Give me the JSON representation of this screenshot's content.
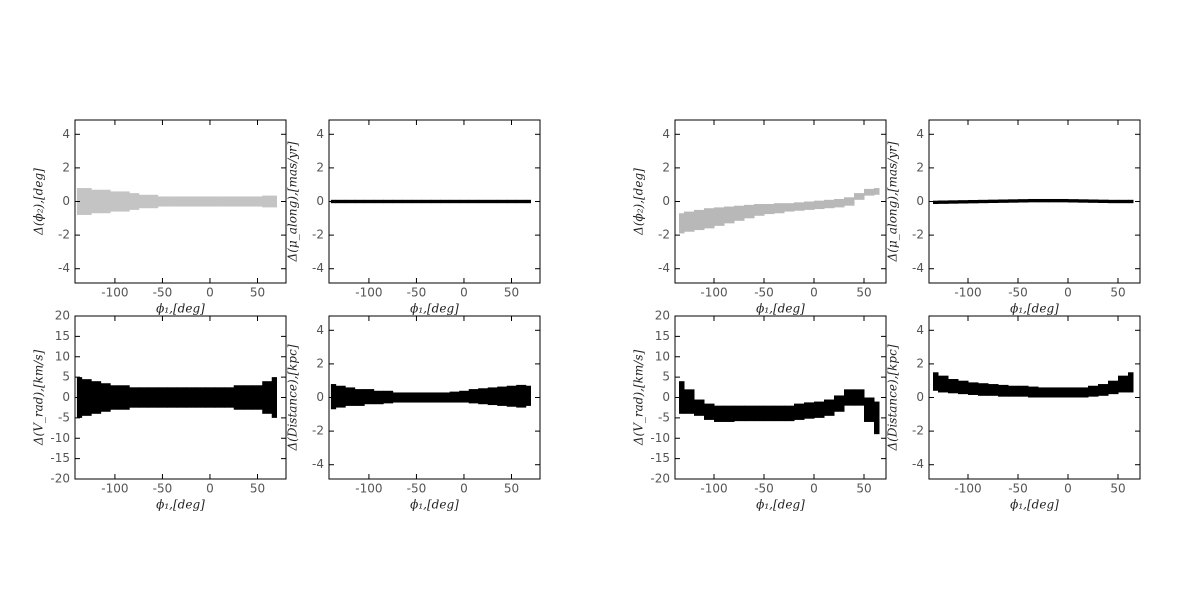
{
  "chart_data": [
    {
      "type": "band",
      "xlabel": "ϕ₁,[deg]",
      "ylabel": "Δ(ϕ₂),[deg]",
      "color": "#c4c4c4",
      "xlim": [
        -142,
        80
      ],
      "xticks": [
        -100,
        -50,
        0,
        50
      ],
      "ylim": [
        -4.85,
        4.85
      ],
      "yticks": [
        -4,
        -2,
        0,
        2,
        4
      ],
      "x": [
        -140,
        -130,
        -120,
        -110,
        -100,
        -90,
        -80,
        -70,
        -60,
        -50,
        -40,
        -30,
        -20,
        -10,
        0,
        10,
        20,
        30,
        40,
        50,
        60,
        70
      ],
      "upper": [
        0.8,
        0.8,
        0.7,
        0.7,
        0.6,
        0.6,
        0.5,
        0.4,
        0.4,
        0.3,
        0.3,
        0.3,
        0.3,
        0.3,
        0.3,
        0.3,
        0.3,
        0.3,
        0.3,
        0.3,
        0.35,
        0.35
      ],
      "lower": [
        -0.8,
        -0.8,
        -0.7,
        -0.7,
        -0.6,
        -0.6,
        -0.5,
        -0.4,
        -0.4,
        -0.3,
        -0.3,
        -0.3,
        -0.3,
        -0.3,
        -0.3,
        -0.3,
        -0.3,
        -0.3,
        -0.3,
        -0.3,
        -0.35,
        -0.35
      ]
    },
    {
      "type": "band",
      "xlabel": "ϕ₁,[deg]",
      "ylabel": "Δ(μ_along),[mas/yr]",
      "color": "#000000",
      "xlim": [
        -142,
        80
      ],
      "xticks": [
        -100,
        -50,
        0,
        50
      ],
      "ylim": [
        -4.85,
        4.85
      ],
      "yticks": [
        -4,
        -2,
        0,
        2,
        4
      ],
      "x": [
        -140,
        -130,
        -120,
        -110,
        -100,
        -90,
        -80,
        -70,
        -60,
        -50,
        -40,
        -30,
        -20,
        -10,
        0,
        10,
        20,
        30,
        40,
        50,
        60,
        70
      ],
      "upper": [
        0.1,
        0.1,
        0.1,
        0.1,
        0.1,
        0.1,
        0.1,
        0.1,
        0.1,
        0.1,
        0.1,
        0.1,
        0.1,
        0.1,
        0.1,
        0.1,
        0.1,
        0.1,
        0.1,
        0.1,
        0.1,
        0.1
      ],
      "lower": [
        -0.1,
        -0.1,
        -0.1,
        -0.1,
        -0.1,
        -0.1,
        -0.1,
        -0.1,
        -0.1,
        -0.1,
        -0.1,
        -0.1,
        -0.1,
        -0.1,
        -0.1,
        -0.1,
        -0.1,
        -0.1,
        -0.1,
        -0.1,
        -0.1,
        -0.1
      ]
    },
    {
      "type": "band",
      "xlabel": "ϕ₁,[deg]",
      "ylabel": "Δ(V_rad),[km/s]",
      "color": "#000000",
      "xlim": [
        -142,
        80
      ],
      "xticks": [
        -100,
        -50,
        0,
        50
      ],
      "ylim": [
        -20,
        20
      ],
      "yticks": [
        -20,
        -15,
        -10,
        -5,
        0,
        5,
        10,
        15,
        20
      ],
      "x": [
        -140,
        -130,
        -120,
        -110,
        -100,
        -90,
        -80,
        -70,
        -60,
        -50,
        -40,
        -30,
        -20,
        -10,
        0,
        10,
        20,
        30,
        40,
        50,
        60,
        70
      ],
      "upper": [
        5,
        4.5,
        4,
        3.5,
        3,
        3,
        2.5,
        2.5,
        2.5,
        2.5,
        2.5,
        2.5,
        2.5,
        2.5,
        2.5,
        2.5,
        2.5,
        3,
        3,
        3,
        4,
        5
      ],
      "lower": [
        -5,
        -4.5,
        -4,
        -3.5,
        -3,
        -3,
        -2.5,
        -2.5,
        -2.5,
        -2.5,
        -2.5,
        -2.5,
        -2.5,
        -2.5,
        -2.5,
        -2.5,
        -2.5,
        -3,
        -3,
        -3,
        -4,
        -5
      ]
    },
    {
      "type": "band",
      "xlabel": "ϕ₁,[deg]",
      "ylabel": "Δ(Distance),[kpc]",
      "color": "#000000",
      "xlim": [
        -142,
        80
      ],
      "xticks": [
        -100,
        -50,
        0,
        50
      ],
      "ylim": [
        -4.85,
        4.85
      ],
      "yticks": [
        -4,
        -2,
        0,
        2,
        4
      ],
      "x": [
        -140,
        -130,
        -120,
        -110,
        -100,
        -90,
        -80,
        -70,
        -60,
        -50,
        -40,
        -30,
        -20,
        -10,
        0,
        10,
        20,
        30,
        40,
        50,
        60,
        70
      ],
      "upper": [
        0.8,
        0.7,
        0.6,
        0.5,
        0.5,
        0.4,
        0.4,
        0.3,
        0.3,
        0.3,
        0.3,
        0.3,
        0.3,
        0.35,
        0.4,
        0.5,
        0.55,
        0.6,
        0.65,
        0.7,
        0.75,
        0.7
      ],
      "lower": [
        -0.7,
        -0.6,
        -0.5,
        -0.5,
        -0.4,
        -0.4,
        -0.35,
        -0.3,
        -0.3,
        -0.3,
        -0.3,
        -0.3,
        -0.3,
        -0.3,
        -0.3,
        -0.35,
        -0.4,
        -0.45,
        -0.5,
        -0.55,
        -0.6,
        -0.5
      ]
    },
    {
      "type": "band",
      "xlabel": "ϕ₁,[deg]",
      "ylabel": "Δ(ϕ₂),[deg]",
      "color": "#b8b8b8",
      "xlim": [
        -139,
        72
      ],
      "xticks": [
        -100,
        -50,
        0,
        50
      ],
      "ylim": [
        -4.85,
        4.85
      ],
      "yticks": [
        -4,
        -2,
        0,
        2,
        4
      ],
      "x": [
        -135,
        -125,
        -115,
        -105,
        -95,
        -85,
        -75,
        -65,
        -55,
        -45,
        -35,
        -25,
        -15,
        -5,
        5,
        15,
        25,
        35,
        45,
        55,
        65
      ],
      "upper": [
        -0.7,
        -0.6,
        -0.5,
        -0.4,
        -0.35,
        -0.3,
        -0.25,
        -0.2,
        -0.15,
        -0.15,
        -0.1,
        -0.1,
        -0.05,
        0.0,
        0.05,
        0.1,
        0.15,
        0.25,
        0.5,
        0.75,
        0.8
      ],
      "lower": [
        -1.9,
        -1.8,
        -1.7,
        -1.6,
        -1.45,
        -1.3,
        -1.15,
        -1.0,
        -0.85,
        -0.75,
        -0.7,
        -0.6,
        -0.55,
        -0.5,
        -0.45,
        -0.4,
        -0.35,
        -0.25,
        0.1,
        0.35,
        0.4
      ]
    },
    {
      "type": "band",
      "xlabel": "ϕ₁,[deg]",
      "ylabel": "Δ(μ_along),[mas/yr]",
      "color": "#000000",
      "xlim": [
        -139,
        72
      ],
      "xticks": [
        -100,
        -50,
        0,
        50
      ],
      "ylim": [
        -4.85,
        4.85
      ],
      "yticks": [
        -4,
        -2,
        0,
        2,
        4
      ],
      "x": [
        -135,
        -125,
        -115,
        -105,
        -95,
        -85,
        -75,
        -65,
        -55,
        -45,
        -35,
        -25,
        -15,
        -5,
        5,
        15,
        25,
        35,
        45,
        55,
        65
      ],
      "upper": [
        0.05,
        0.06,
        0.07,
        0.08,
        0.09,
        0.1,
        0.11,
        0.12,
        0.13,
        0.14,
        0.15,
        0.15,
        0.15,
        0.15,
        0.14,
        0.13,
        0.12,
        0.11,
        0.1,
        0.1,
        0.1
      ],
      "lower": [
        -0.15,
        -0.14,
        -0.13,
        -0.12,
        -0.11,
        -0.1,
        -0.09,
        -0.08,
        -0.07,
        -0.06,
        -0.05,
        -0.05,
        -0.05,
        -0.05,
        -0.06,
        -0.07,
        -0.08,
        -0.09,
        -0.1,
        -0.1,
        -0.1
      ]
    },
    {
      "type": "band",
      "xlabel": "ϕ₁,[deg]",
      "ylabel": "Δ(V_rad),[km/s]",
      "color": "#000000",
      "xlim": [
        -139,
        72
      ],
      "xticks": [
        -100,
        -50,
        0,
        50
      ],
      "ylim": [
        -20,
        20
      ],
      "yticks": [
        -20,
        -15,
        -10,
        -5,
        0,
        5,
        10,
        15,
        20
      ],
      "x": [
        -135,
        -125,
        -115,
        -105,
        -95,
        -85,
        -75,
        -65,
        -55,
        -45,
        -35,
        -25,
        -15,
        -5,
        5,
        15,
        25,
        35,
        45,
        55,
        65
      ],
      "upper": [
        4,
        2,
        -0.5,
        -1.5,
        -2,
        -2,
        -2,
        -2,
        -2,
        -2,
        -2,
        -2,
        -1.5,
        -1.2,
        -1,
        -0.5,
        0.5,
        2,
        2,
        0,
        -1
      ],
      "lower": [
        -4,
        -4,
        -4.5,
        -5.5,
        -6,
        -6,
        -5.8,
        -5.8,
        -5.8,
        -5.8,
        -5.8,
        -5.8,
        -5.5,
        -5.2,
        -5,
        -4.5,
        -3.5,
        -2,
        -2,
        -6,
        -9
      ]
    },
    {
      "type": "band",
      "xlabel": "ϕ₁,[deg]",
      "ylabel": "Δ(Distance),[kpc]",
      "color": "#000000",
      "xlim": [
        -139,
        72
      ],
      "xticks": [
        -100,
        -50,
        0,
        50
      ],
      "ylim": [
        -4.85,
        4.85
      ],
      "yticks": [
        -4,
        -2,
        0,
        2,
        4
      ],
      "x": [
        -135,
        -125,
        -115,
        -105,
        -95,
        -85,
        -75,
        -65,
        -55,
        -45,
        -35,
        -25,
        -15,
        -5,
        5,
        15,
        25,
        35,
        45,
        55,
        65
      ],
      "upper": [
        1.5,
        1.3,
        1.1,
        1.0,
        0.9,
        0.85,
        0.8,
        0.75,
        0.7,
        0.7,
        0.65,
        0.6,
        0.6,
        0.6,
        0.6,
        0.6,
        0.7,
        0.8,
        1.0,
        1.3,
        1.5
      ],
      "lower": [
        0.4,
        0.3,
        0.25,
        0.2,
        0.15,
        0.1,
        0.1,
        0.05,
        0.05,
        0.05,
        0.0,
        0.0,
        0.0,
        0.0,
        0.0,
        0.0,
        0.05,
        0.1,
        0.2,
        0.3,
        0.3
      ]
    }
  ]
}
